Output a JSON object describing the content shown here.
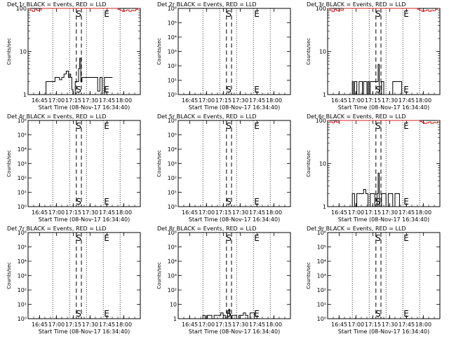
{
  "page": {
    "background": "#ffffff",
    "ink": "#000000",
    "lld_color": "#d42020"
  },
  "xaxis": {
    "tick_labels": [
      "16:45",
      "17:00",
      "17:15",
      "17:30",
      "17:45",
      "18:00"
    ],
    "tick_values_min": [
      10.33,
      25.33,
      40.33,
      55.33,
      70.33,
      85.33
    ],
    "xlim_min": [
      0,
      100
    ],
    "label": "Start Time (08-Nov-17 16:34:40)"
  },
  "markers": {
    "dotted_min": [
      22,
      37,
      52,
      67,
      82
    ],
    "dashed_min": [
      43,
      47.5
    ],
    "S_min": 45,
    "E_min": 70
  },
  "chart_data": [
    {
      "type": "line",
      "title": "Det 1r BLACK = Events, RED = LLD",
      "ylabel": "Counts/sec",
      "yscale": "log",
      "ylim": [
        1,
        100
      ],
      "yticks": [
        "1",
        "10",
        "100"
      ],
      "yticks_values": [
        1,
        10,
        100
      ],
      "show_S_E_text": true,
      "series": [
        {
          "name": "Events",
          "color": "#000000",
          "x": [
            14,
            16,
            18,
            20,
            22,
            24,
            26,
            28,
            30,
            32,
            34,
            36,
            37,
            38,
            39,
            40,
            42,
            44,
            45,
            46,
            47,
            48,
            50,
            52,
            54,
            56,
            58,
            60,
            62,
            64,
            66,
            68,
            70,
            72,
            74
          ],
          "y": [
            1,
            2,
            2,
            2,
            2,
            2.5,
            2.5,
            2.2,
            2.5,
            3,
            3.5,
            2.5,
            3.0,
            2.5,
            1.3,
            1,
            2,
            2,
            4,
            7,
            2,
            2.5,
            2.5,
            2.5,
            2.5,
            2.5,
            2.5,
            2.5,
            1.2,
            2.5,
            1,
            2.5,
            2.5,
            2.5,
            2.5
          ]
        },
        {
          "name": "LLD",
          "color": "#d42020",
          "x": [
            0,
            2,
            4,
            6,
            8,
            10,
            12,
            78,
            80,
            82,
            84,
            86,
            88,
            90,
            92,
            94,
            96,
            98
          ],
          "y": [
            100,
            90,
            85,
            95,
            88,
            92,
            100,
            100,
            95,
            90,
            85,
            88,
            92,
            85,
            90,
            88,
            95,
            100
          ]
        }
      ]
    },
    {
      "type": "line",
      "title": "Det 2r BLACK = Events, RED = LLD",
      "ylabel": "Counts/sec",
      "yscale": "log",
      "ylim": [
        1,
        1000000
      ],
      "yticks": [
        "10⁰",
        "10¹",
        "10²",
        "10³",
        "10⁴",
        "10⁵",
        "10⁶"
      ],
      "yticks_values": [
        1,
        10,
        100,
        1000,
        10000,
        100000,
        1000000
      ],
      "show_S_E_text": true,
      "series": []
    },
    {
      "type": "line",
      "title": "Det 3r BLACK = Events, RED = LLD",
      "ylabel": "Counts/sec",
      "yscale": "log",
      "ylim": [
        1,
        100
      ],
      "yticks": [
        "1",
        "10",
        "100"
      ],
      "yticks_values": [
        1,
        10,
        100
      ],
      "show_S_E_text": true,
      "series": [
        {
          "name": "Events",
          "color": "#000000",
          "x": [
            20,
            22,
            23,
            24,
            26,
            28,
            30,
            31,
            32,
            33,
            34,
            35,
            36,
            37,
            38,
            40,
            42,
            44,
            45,
            46,
            48,
            50,
            58,
            60,
            62,
            66
          ],
          "y": [
            1,
            2,
            1,
            2,
            1,
            2,
            2,
            1,
            2,
            2,
            2,
            1,
            2,
            1,
            2,
            2,
            2,
            2,
            5,
            1,
            2,
            1,
            2,
            2,
            2,
            1
          ]
        },
        {
          "name": "LLD",
          "color": "#d42020",
          "x": [
            0,
            2,
            4,
            6,
            8,
            10,
            12,
            14,
            78,
            80,
            82,
            84,
            86,
            88,
            90,
            92,
            94,
            96,
            98
          ],
          "y": [
            100,
            90,
            85,
            95,
            88,
            92,
            90,
            100,
            100,
            95,
            90,
            85,
            88,
            92,
            85,
            90,
            88,
            95,
            100
          ]
        }
      ]
    },
    {
      "type": "line",
      "title": "Det 4r BLACK = Events, RED = LLD",
      "ylabel": "Counts/sec",
      "yscale": "log",
      "ylim": [
        1,
        1000000
      ],
      "yticks": [
        "10⁰",
        "10¹",
        "10²",
        "10³",
        "10⁴",
        "10⁵",
        "10⁶"
      ],
      "yticks_values": [
        1,
        10,
        100,
        1000,
        10000,
        100000,
        1000000
      ],
      "show_S_E_text": true,
      "series": []
    },
    {
      "type": "line",
      "title": "Det 5r BLACK = Events, RED = LLD",
      "ylabel": "Counts/sec",
      "yscale": "log",
      "ylim": [
        1,
        1000000
      ],
      "yticks": [
        "10⁰",
        "10¹",
        "10²",
        "10³",
        "10⁴",
        "10⁵",
        "10⁶"
      ],
      "yticks_values": [
        1,
        10,
        100,
        1000,
        10000,
        100000,
        1000000
      ],
      "show_S_E_text": true,
      "series": []
    },
    {
      "type": "line",
      "title": "Det 6r BLACK = Events, RED = LLD",
      "ylabel": "Counts/sec",
      "yscale": "log",
      "ylim": [
        1,
        100
      ],
      "yticks": [
        "1",
        "10",
        "100"
      ],
      "yticks_values": [
        1,
        10,
        100
      ],
      "show_S_E_text": true,
      "series": [
        {
          "name": "Events",
          "color": "#000000",
          "x": [
            20,
            22,
            24,
            26,
            28,
            30,
            32,
            34,
            36,
            38,
            40,
            42,
            44,
            45,
            46,
            48,
            50,
            52,
            54,
            56,
            58,
            60,
            62,
            64
          ],
          "y": [
            1,
            2,
            1,
            2,
            2,
            2,
            2.5,
            2,
            1,
            2,
            2,
            1,
            2,
            6,
            1,
            2,
            2,
            1,
            2,
            2,
            1,
            2,
            2,
            1
          ]
        },
        {
          "name": "LLD",
          "color": "#d42020",
          "x": [
            0,
            2,
            4,
            6,
            8,
            10,
            80,
            82,
            84,
            86,
            88,
            90,
            92,
            94,
            96,
            98
          ],
          "y": [
            100,
            92,
            88,
            95,
            90,
            100,
            100,
            95,
            90,
            85,
            88,
            92,
            85,
            90,
            88,
            100
          ]
        }
      ]
    },
    {
      "type": "line",
      "title": "Det 7r BLACK = Events, RED = LLD",
      "ylabel": "Counts/sec",
      "yscale": "log",
      "ylim": [
        1,
        1000000
      ],
      "yticks": [
        "10⁰",
        "10¹",
        "10²",
        "10³",
        "10⁴",
        "10⁵",
        "10⁶"
      ],
      "yticks_values": [
        1,
        10,
        100,
        1000,
        10000,
        100000,
        1000000
      ],
      "show_S_E_text": true,
      "series": []
    },
    {
      "type": "line",
      "title": "Det 8r BLACK = Events, RED = LLD",
      "ylabel": "Counts/sec",
      "yscale": "log",
      "ylim": [
        1,
        1000000
      ],
      "yticks": [
        "1",
        "10",
        "10²",
        "10³",
        "10⁴",
        "10⁵",
        "10⁶"
      ],
      "yticks_values": [
        1,
        10,
        100,
        1000,
        10000,
        100000,
        1000000
      ],
      "show_S_E_text": true,
      "series": [
        {
          "name": "Events",
          "color": "#000000",
          "x": [
            20,
            22,
            24,
            26,
            28,
            30,
            32,
            34,
            36,
            38,
            40,
            42,
            44,
            45,
            46,
            47,
            48,
            50,
            52,
            54,
            56,
            58,
            60,
            62,
            64,
            66,
            68
          ],
          "y": [
            1,
            1.7,
            1,
            1.7,
            1.7,
            1,
            1.7,
            1.7,
            1.7,
            2.5,
            1.7,
            1,
            2.5,
            4.5,
            1.7,
            1,
            1.7,
            1.7,
            1,
            1.7,
            1.7,
            2.5,
            1.7,
            1,
            2.5,
            2.5,
            1
          ]
        }
      ]
    },
    {
      "type": "line",
      "title": "Det 9r BLACK = Events, RED = LLD",
      "ylabel": "Counts/sec",
      "yscale": "log",
      "ylim": [
        1,
        1000000
      ],
      "yticks": [
        "10⁰",
        "10¹",
        "10²",
        "10³",
        "10⁴",
        "10⁵",
        "10⁶"
      ],
      "yticks_values": [
        1,
        10,
        100,
        1000,
        10000,
        100000,
        1000000
      ],
      "show_S_E_text": true,
      "series": []
    }
  ]
}
